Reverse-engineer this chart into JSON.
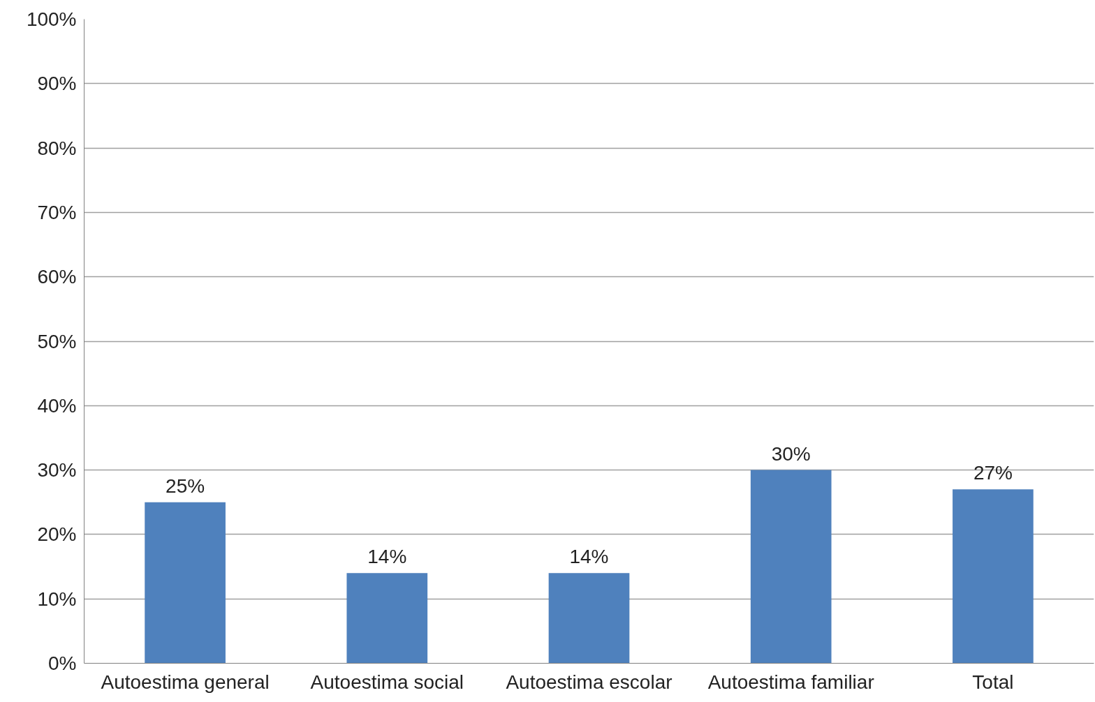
{
  "chart_data": {
    "type": "bar",
    "categories": [
      "Autoestima general",
      "Autoestima social",
      "Autoestima escolar",
      "Autoestima familiar",
      "Total"
    ],
    "values": [
      25,
      14,
      14,
      30,
      27
    ],
    "value_labels": [
      "25%",
      "14%",
      "14%",
      "30%",
      "27%"
    ],
    "color": "#4f81bd",
    "ylim": [
      0,
      100
    ],
    "yticks": [
      {
        "value": 0,
        "label": "0%"
      },
      {
        "value": 10,
        "label": "10%"
      },
      {
        "value": 20,
        "label": "20%"
      },
      {
        "value": 30,
        "label": "30%"
      },
      {
        "value": 40,
        "label": "40%"
      },
      {
        "value": 50,
        "label": "50%"
      },
      {
        "value": 60,
        "label": "60%"
      },
      {
        "value": 70,
        "label": "70%"
      },
      {
        "value": 80,
        "label": "80%"
      },
      {
        "value": 90,
        "label": "90%"
      },
      {
        "value": 100,
        "label": "100%"
      }
    ],
    "grid": "y"
  }
}
